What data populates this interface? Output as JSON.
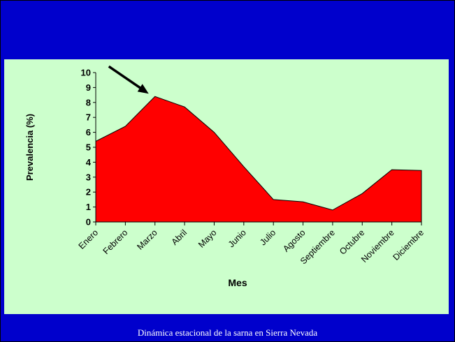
{
  "caption": "Dinámica estacional de la sarna en Sierra Nevada",
  "colors": {
    "background": "#0000cc",
    "plot_area": "#ccffcc",
    "series_fill": "#ff0000",
    "caption_text": "#ffffff"
  },
  "chart_data": {
    "type": "area",
    "title": "",
    "xlabel": "Mes",
    "ylabel": "Prevalencia (%)",
    "ylim": [
      0,
      10
    ],
    "yticks": [
      0,
      1,
      2,
      3,
      4,
      5,
      6,
      7,
      8,
      9,
      10
    ],
    "grid": false,
    "legend": "none",
    "categories": [
      "Enero",
      "Febrero",
      "Marzo",
      "Abril",
      "Mayo",
      "Junio",
      "Julio",
      "Agosto",
      "Septiembre",
      "Octubre",
      "Noviembre",
      "Diciembre"
    ],
    "series": [
      {
        "values": [
          5.4,
          6.4,
          8.4,
          7.7,
          6.0,
          3.7,
          1.5,
          1.35,
          0.8,
          1.9,
          3.5,
          3.45
        ]
      }
    ],
    "annotations": [
      {
        "type": "arrow",
        "points_to": "Marzo"
      }
    ]
  }
}
